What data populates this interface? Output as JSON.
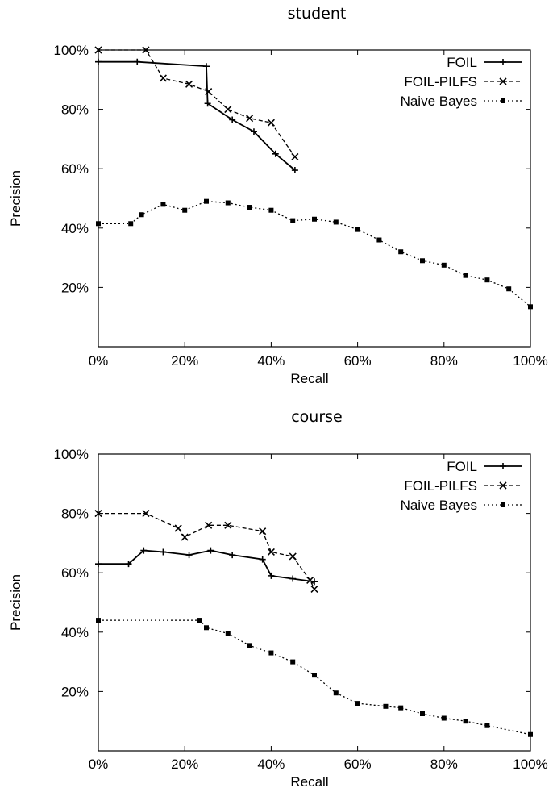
{
  "chart_data": [
    {
      "type": "line",
      "title": "student",
      "xlabel": "Recall",
      "ylabel": "Precision",
      "xlim": [
        0,
        100
      ],
      "ylim": [
        0,
        100
      ],
      "xticks": [
        "0%",
        "20%",
        "40%",
        "60%",
        "80%",
        "100%"
      ],
      "yticks": [
        "20%",
        "40%",
        "60%",
        "80%",
        "100%"
      ],
      "legend_position": "top-right",
      "series": [
        {
          "name": "FOIL",
          "style": "solid",
          "marker": "plus",
          "x": [
            0,
            9,
            25,
            25.3,
            31,
            36,
            41,
            45.5
          ],
          "y": [
            96,
            96,
            94.5,
            82,
            76.5,
            72.5,
            65,
            59.5
          ]
        },
        {
          "name": "FOIL-PILFS",
          "style": "dashed",
          "marker": "cross",
          "x": [
            0,
            11,
            15,
            21,
            25.5,
            30,
            35,
            40,
            45.5
          ],
          "y": [
            100,
            100,
            90.5,
            88.5,
            86,
            80,
            77,
            75.5,
            64
          ]
        },
        {
          "name": "Naive Bayes",
          "style": "dotted",
          "marker": "square",
          "x": [
            0,
            7.5,
            10,
            15,
            20,
            25,
            30,
            35,
            40,
            45,
            50,
            55,
            60,
            65,
            70,
            75,
            80,
            85,
            90,
            95,
            100
          ],
          "y": [
            41.5,
            41.5,
            44.5,
            48,
            46,
            49,
            48.5,
            47,
            46,
            42.5,
            43,
            42,
            39.5,
            36,
            32,
            29,
            27.5,
            24,
            22.5,
            19.5,
            13.5
          ]
        }
      ]
    },
    {
      "type": "line",
      "title": "course",
      "xlabel": "Recall",
      "ylabel": "Precision",
      "xlim": [
        0,
        100
      ],
      "ylim": [
        0,
        100
      ],
      "xticks": [
        "0%",
        "20%",
        "40%",
        "60%",
        "80%",
        "100%"
      ],
      "yticks": [
        "20%",
        "40%",
        "60%",
        "80%",
        "100%"
      ],
      "legend_position": "top-right",
      "series": [
        {
          "name": "FOIL",
          "style": "solid",
          "marker": "plus",
          "x": [
            0,
            7,
            10.5,
            15,
            21,
            26,
            31,
            38,
            40,
            45,
            50
          ],
          "y": [
            63,
            63,
            67.5,
            67,
            66,
            67.5,
            66,
            64.5,
            59,
            58,
            57
          ]
        },
        {
          "name": "FOIL-PILFS",
          "style": "dashed",
          "marker": "cross",
          "x": [
            0,
            11,
            18.5,
            20,
            25.5,
            30,
            38,
            40,
            45,
            49,
            50
          ],
          "y": [
            80,
            80,
            75,
            72,
            76,
            76,
            74,
            67,
            65.5,
            57.5,
            54.5
          ]
        },
        {
          "name": "Naive Bayes",
          "style": "dotted",
          "marker": "square",
          "x": [
            0,
            23.5,
            25,
            30,
            35,
            40,
            45,
            50,
            55,
            60,
            66.5,
            70,
            75,
            80,
            85,
            90,
            100
          ],
          "y": [
            44,
            44,
            41.5,
            39.5,
            35.5,
            33,
            30,
            25.5,
            19.5,
            16,
            15,
            14.5,
            12.5,
            11,
            10,
            8.5,
            5.5
          ]
        }
      ]
    }
  ]
}
